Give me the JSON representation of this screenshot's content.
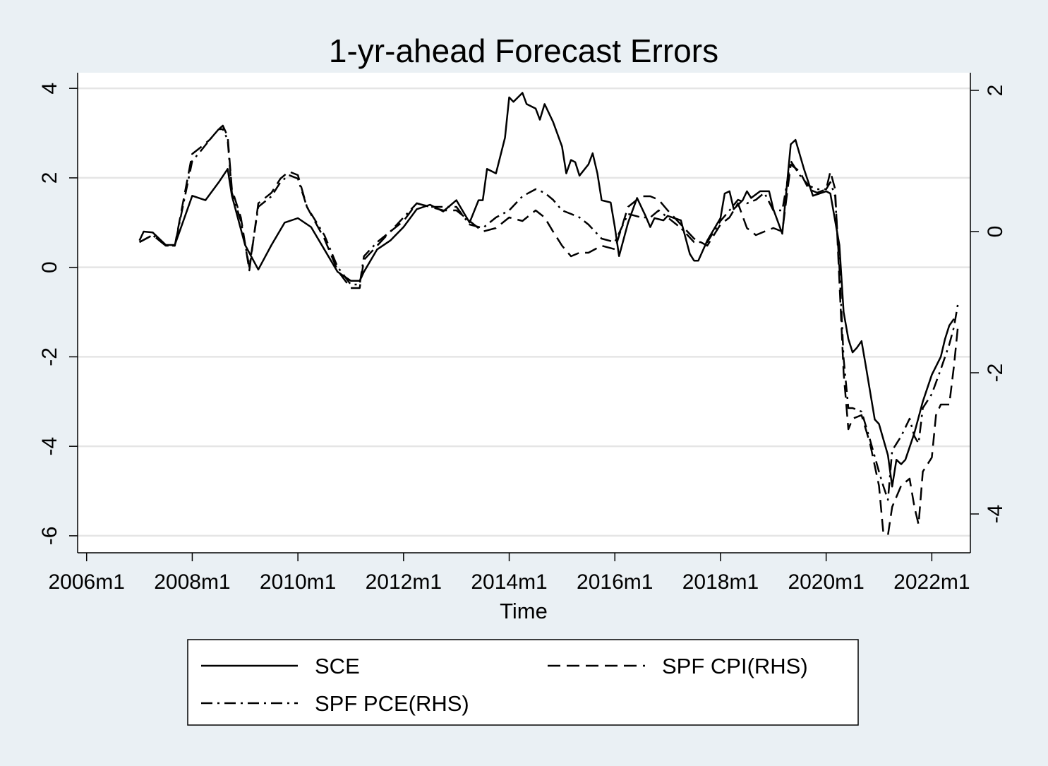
{
  "chart_data": {
    "type": "line",
    "title": "1-yr-ahead Forecast Errors",
    "xlabel": "Time",
    "ylabel": "",
    "x_ticks": [
      "2006m1",
      "2008m1",
      "2010m1",
      "2012m1",
      "2014m1",
      "2016m1",
      "2018m1",
      "2020m1",
      "2022m1"
    ],
    "x_tick_values": [
      2006.0,
      2008.0,
      2010.0,
      2012.0,
      2014.0,
      2016.0,
      2018.0,
      2020.0,
      2022.0
    ],
    "xlim": [
      2005.83,
      2022.73
    ],
    "y_left": {
      "ticks": [
        "4",
        "2",
        "0",
        "-2",
        "-4",
        "-6"
      ],
      "tick_values": [
        4,
        2,
        0,
        -2,
        -4,
        -6
      ],
      "lim": [
        -6.38,
        4.35
      ]
    },
    "y_right": {
      "ticks": [
        "2",
        "0",
        "-2",
        "-4"
      ],
      "tick_values": [
        2,
        0,
        -2,
        -4
      ],
      "lim": [
        -4.55,
        2.25
      ]
    },
    "grid": true,
    "legend": {
      "position": "bottom",
      "columns": 2
    },
    "colors": {
      "background": "#eaf0f4",
      "plot_background": "#ffffff",
      "line": "#000000",
      "grid": "#e5e5e5"
    },
    "series": [
      {
        "name": "SCE",
        "axis": "left",
        "style": "solid",
        "points": [
          [
            2007.0,
            0.6
          ],
          [
            2007.08,
            0.8
          ],
          [
            2007.25,
            0.78
          ],
          [
            2007.5,
            0.5
          ],
          [
            2007.67,
            0.5
          ],
          [
            2008.0,
            1.6
          ],
          [
            2008.25,
            1.5
          ],
          [
            2008.5,
            1.9
          ],
          [
            2008.67,
            2.2
          ],
          [
            2008.75,
            1.6
          ],
          [
            2009.0,
            0.5
          ],
          [
            2009.25,
            -0.05
          ],
          [
            2009.5,
            0.5
          ],
          [
            2009.75,
            1.0
          ],
          [
            2010.0,
            1.1
          ],
          [
            2010.25,
            0.9
          ],
          [
            2010.5,
            0.4
          ],
          [
            2010.75,
            -0.1
          ],
          [
            2011.0,
            -0.3
          ],
          [
            2011.17,
            -0.3
          ],
          [
            2011.25,
            -0.1
          ],
          [
            2011.5,
            0.4
          ],
          [
            2011.75,
            0.6
          ],
          [
            2012.0,
            0.9
          ],
          [
            2012.25,
            1.3
          ],
          [
            2012.5,
            1.4
          ],
          [
            2012.75,
            1.25
          ],
          [
            2013.0,
            1.5
          ],
          [
            2013.25,
            1.0
          ],
          [
            2013.42,
            1.5
          ],
          [
            2013.5,
            1.5
          ],
          [
            2013.58,
            2.2
          ],
          [
            2013.75,
            2.1
          ],
          [
            2013.92,
            2.9
          ],
          [
            2014.0,
            3.8
          ],
          [
            2014.08,
            3.7
          ],
          [
            2014.25,
            3.9
          ],
          [
            2014.33,
            3.65
          ],
          [
            2014.5,
            3.55
          ],
          [
            2014.58,
            3.3
          ],
          [
            2014.67,
            3.65
          ],
          [
            2014.83,
            3.25
          ],
          [
            2015.0,
            2.7
          ],
          [
            2015.08,
            2.1
          ],
          [
            2015.17,
            2.4
          ],
          [
            2015.25,
            2.35
          ],
          [
            2015.33,
            2.05
          ],
          [
            2015.5,
            2.3
          ],
          [
            2015.58,
            2.55
          ],
          [
            2015.67,
            2.1
          ],
          [
            2015.75,
            1.5
          ],
          [
            2015.92,
            1.45
          ],
          [
            2016.0,
            0.9
          ],
          [
            2016.08,
            0.25
          ],
          [
            2016.25,
            1.0
          ],
          [
            2016.42,
            1.55
          ],
          [
            2016.58,
            1.15
          ],
          [
            2016.67,
            0.9
          ],
          [
            2016.75,
            1.1
          ],
          [
            2016.92,
            1.05
          ],
          [
            2017.0,
            1.15
          ],
          [
            2017.25,
            1.05
          ],
          [
            2017.42,
            0.3
          ],
          [
            2017.5,
            0.15
          ],
          [
            2017.58,
            0.15
          ],
          [
            2017.75,
            0.6
          ],
          [
            2018.0,
            1.1
          ],
          [
            2018.08,
            1.65
          ],
          [
            2018.17,
            1.7
          ],
          [
            2018.25,
            1.3
          ],
          [
            2018.42,
            1.5
          ],
          [
            2018.5,
            1.7
          ],
          [
            2018.58,
            1.55
          ],
          [
            2018.75,
            1.7
          ],
          [
            2018.92,
            1.7
          ],
          [
            2019.0,
            1.3
          ],
          [
            2019.17,
            0.75
          ],
          [
            2019.33,
            2.75
          ],
          [
            2019.42,
            2.85
          ],
          [
            2019.58,
            2.2
          ],
          [
            2019.75,
            1.6
          ],
          [
            2020.0,
            1.7
          ],
          [
            2020.08,
            1.65
          ],
          [
            2020.25,
            0.5
          ],
          [
            2020.33,
            -1.0
          ],
          [
            2020.42,
            -1.6
          ],
          [
            2020.5,
            -1.9
          ],
          [
            2020.58,
            -1.8
          ],
          [
            2020.67,
            -1.65
          ],
          [
            2020.75,
            -2.2
          ],
          [
            2020.92,
            -3.4
          ],
          [
            2021.0,
            -3.5
          ],
          [
            2021.17,
            -4.2
          ],
          [
            2021.25,
            -4.9
          ],
          [
            2021.33,
            -4.3
          ],
          [
            2021.42,
            -4.4
          ],
          [
            2021.5,
            -4.3
          ],
          [
            2021.67,
            -3.7
          ],
          [
            2021.83,
            -3.0
          ],
          [
            2022.0,
            -2.4
          ],
          [
            2022.17,
            -2.0
          ],
          [
            2022.25,
            -1.6
          ],
          [
            2022.33,
            -1.3
          ],
          [
            2022.42,
            -1.15
          ]
        ]
      },
      {
        "name": "SPF CPI(RHS)",
        "axis": "right",
        "style": "dash",
        "points": [
          [
            2007.0,
            -0.15
          ],
          [
            2007.25,
            -0.05
          ],
          [
            2007.5,
            -0.2
          ],
          [
            2007.67,
            -0.2
          ],
          [
            2008.0,
            1.1
          ],
          [
            2008.17,
            1.2
          ],
          [
            2008.33,
            1.3
          ],
          [
            2008.5,
            1.45
          ],
          [
            2008.58,
            1.5
          ],
          [
            2008.67,
            1.35
          ],
          [
            2008.75,
            0.6
          ],
          [
            2008.92,
            0.2
          ],
          [
            2009.08,
            -0.55
          ],
          [
            2009.25,
            0.4
          ],
          [
            2009.5,
            0.55
          ],
          [
            2009.67,
            0.75
          ],
          [
            2009.83,
            0.85
          ],
          [
            2010.0,
            0.8
          ],
          [
            2010.17,
            0.35
          ],
          [
            2010.5,
            -0.1
          ],
          [
            2010.75,
            -0.55
          ],
          [
            2011.0,
            -0.8
          ],
          [
            2011.17,
            -0.8
          ],
          [
            2011.25,
            -0.4
          ],
          [
            2011.5,
            -0.2
          ],
          [
            2011.75,
            0.0
          ],
          [
            2012.0,
            0.15
          ],
          [
            2012.25,
            0.4
          ],
          [
            2012.5,
            0.35
          ],
          [
            2012.75,
            0.3
          ],
          [
            2013.0,
            0.3
          ],
          [
            2013.25,
            0.15
          ],
          [
            2013.5,
            0.0
          ],
          [
            2013.75,
            0.05
          ],
          [
            2014.0,
            0.2
          ],
          [
            2014.25,
            0.15
          ],
          [
            2014.5,
            0.3
          ],
          [
            2014.67,
            0.2
          ],
          [
            2014.83,
            0.0
          ],
          [
            2015.0,
            -0.2
          ],
          [
            2015.17,
            -0.35
          ],
          [
            2015.33,
            -0.3
          ],
          [
            2015.5,
            -0.3
          ],
          [
            2015.75,
            -0.2
          ],
          [
            2016.0,
            -0.25
          ],
          [
            2016.25,
            0.35
          ],
          [
            2016.5,
            0.5
          ],
          [
            2016.67,
            0.5
          ],
          [
            2016.83,
            0.45
          ],
          [
            2017.0,
            0.3
          ],
          [
            2017.25,
            0.1
          ],
          [
            2017.5,
            -0.1
          ],
          [
            2017.75,
            -0.2
          ],
          [
            2018.0,
            0.1
          ],
          [
            2018.17,
            0.2
          ],
          [
            2018.33,
            0.4
          ],
          [
            2018.5,
            0.05
          ],
          [
            2018.67,
            -0.05
          ],
          [
            2018.83,
            0.0
          ],
          [
            2019.0,
            0.05
          ],
          [
            2019.17,
            0.0
          ],
          [
            2019.33,
            0.95
          ],
          [
            2019.5,
            0.85
          ],
          [
            2019.67,
            0.6
          ],
          [
            2019.83,
            0.55
          ],
          [
            2020.0,
            0.6
          ],
          [
            2020.08,
            0.85
          ],
          [
            2020.17,
            0.6
          ],
          [
            2020.25,
            -0.7
          ],
          [
            2020.33,
            -2.0
          ],
          [
            2020.42,
            -2.8
          ],
          [
            2020.5,
            -2.65
          ],
          [
            2020.67,
            -2.6
          ],
          [
            2020.83,
            -3.0
          ],
          [
            2021.0,
            -3.6
          ],
          [
            2021.08,
            -4.25
          ],
          [
            2021.17,
            -4.3
          ],
          [
            2021.25,
            -3.9
          ],
          [
            2021.42,
            -3.6
          ],
          [
            2021.58,
            -3.5
          ],
          [
            2021.67,
            -3.9
          ],
          [
            2021.75,
            -4.15
          ],
          [
            2021.83,
            -3.4
          ],
          [
            2022.0,
            -3.2
          ],
          [
            2022.08,
            -2.6
          ],
          [
            2022.17,
            -2.45
          ],
          [
            2022.33,
            -2.45
          ],
          [
            2022.42,
            -1.9
          ],
          [
            2022.5,
            -1.3
          ]
        ]
      },
      {
        "name": "SPF PCE(RHS)",
        "axis": "right",
        "style": "dash-dot",
        "points": [
          [
            2007.0,
            -0.15
          ],
          [
            2007.25,
            -0.05
          ],
          [
            2007.5,
            -0.2
          ],
          [
            2007.67,
            -0.2
          ],
          [
            2008.0,
            1.0
          ],
          [
            2008.17,
            1.15
          ],
          [
            2008.33,
            1.3
          ],
          [
            2008.5,
            1.45
          ],
          [
            2008.58,
            1.45
          ],
          [
            2008.67,
            1.3
          ],
          [
            2008.75,
            0.55
          ],
          [
            2008.92,
            0.15
          ],
          [
            2009.08,
            -0.5
          ],
          [
            2009.25,
            0.35
          ],
          [
            2009.5,
            0.5
          ],
          [
            2009.67,
            0.7
          ],
          [
            2009.83,
            0.8
          ],
          [
            2010.0,
            0.75
          ],
          [
            2010.17,
            0.35
          ],
          [
            2010.5,
            -0.05
          ],
          [
            2010.75,
            -0.5
          ],
          [
            2011.0,
            -0.75
          ],
          [
            2011.17,
            -0.75
          ],
          [
            2011.25,
            -0.35
          ],
          [
            2011.5,
            -0.15
          ],
          [
            2011.75,
            0.0
          ],
          [
            2012.0,
            0.2
          ],
          [
            2012.25,
            0.4
          ],
          [
            2012.5,
            0.35
          ],
          [
            2012.75,
            0.35
          ],
          [
            2013.0,
            0.35
          ],
          [
            2013.25,
            0.1
          ],
          [
            2013.5,
            0.05
          ],
          [
            2013.75,
            0.2
          ],
          [
            2014.0,
            0.3
          ],
          [
            2014.25,
            0.5
          ],
          [
            2014.5,
            0.6
          ],
          [
            2014.67,
            0.55
          ],
          [
            2014.83,
            0.45
          ],
          [
            2015.0,
            0.3
          ],
          [
            2015.17,
            0.25
          ],
          [
            2015.33,
            0.2
          ],
          [
            2015.5,
            0.1
          ],
          [
            2015.75,
            -0.1
          ],
          [
            2016.0,
            -0.15
          ],
          [
            2016.25,
            0.25
          ],
          [
            2016.5,
            0.2
          ],
          [
            2016.67,
            0.2
          ],
          [
            2016.83,
            0.3
          ],
          [
            2017.0,
            0.2
          ],
          [
            2017.25,
            0.05
          ],
          [
            2017.5,
            -0.15
          ],
          [
            2017.75,
            -0.15
          ],
          [
            2018.0,
            0.15
          ],
          [
            2018.17,
            0.3
          ],
          [
            2018.33,
            0.45
          ],
          [
            2018.5,
            0.4
          ],
          [
            2018.67,
            0.45
          ],
          [
            2018.83,
            0.55
          ],
          [
            2019.0,
            0.3
          ],
          [
            2019.17,
            0.3
          ],
          [
            2019.33,
            1.0
          ],
          [
            2019.5,
            0.8
          ],
          [
            2019.67,
            0.65
          ],
          [
            2019.83,
            0.6
          ],
          [
            2020.0,
            0.6
          ],
          [
            2020.08,
            0.7
          ],
          [
            2020.17,
            0.5
          ],
          [
            2020.25,
            -0.5
          ],
          [
            2020.33,
            -1.8
          ],
          [
            2020.42,
            -2.5
          ],
          [
            2020.5,
            -2.5
          ],
          [
            2020.67,
            -2.55
          ],
          [
            2020.83,
            -2.95
          ],
          [
            2021.0,
            -3.4
          ],
          [
            2021.08,
            -3.6
          ],
          [
            2021.17,
            -3.8
          ],
          [
            2021.25,
            -3.1
          ],
          [
            2021.42,
            -2.9
          ],
          [
            2021.58,
            -2.65
          ],
          [
            2021.67,
            -2.9
          ],
          [
            2021.75,
            -3.0
          ],
          [
            2021.83,
            -2.5
          ],
          [
            2022.0,
            -2.3
          ],
          [
            2022.17,
            -1.95
          ],
          [
            2022.33,
            -1.6
          ],
          [
            2022.42,
            -1.35
          ],
          [
            2022.5,
            -1.0
          ]
        ]
      }
    ]
  }
}
